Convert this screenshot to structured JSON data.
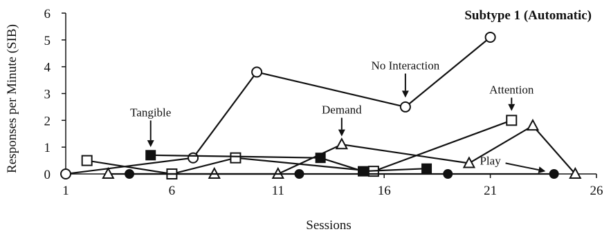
{
  "chart_data": {
    "type": "line",
    "title": "Subtype 1 (Automatic)",
    "xlabel": "Sessions",
    "ylabel": "Responses per Minute (SIB)",
    "xlim": [
      1,
      26
    ],
    "ylim": [
      0,
      6
    ],
    "x_ticks": [
      1,
      6,
      11,
      16,
      21,
      26
    ],
    "y_ticks": [
      0,
      1,
      2,
      3,
      4,
      5,
      6
    ],
    "grid": false,
    "legend": "none",
    "series": [
      {
        "name": "No Interaction",
        "marker": "open-circle",
        "points": [
          [
            1,
            0
          ],
          [
            7,
            0.6
          ],
          [
            10,
            3.8
          ],
          [
            17,
            2.5
          ],
          [
            21,
            5.1
          ]
        ]
      },
      {
        "name": "Attention",
        "marker": "open-square",
        "points": [
          [
            2,
            0.5
          ],
          [
            6,
            0
          ],
          [
            9,
            0.6
          ],
          [
            15.5,
            0.1
          ],
          [
            22,
            2.0
          ]
        ]
      },
      {
        "name": "Tangible",
        "marker": "filled-square",
        "points": [
          [
            5,
            0.7
          ],
          [
            13,
            0.6
          ],
          [
            15,
            0.1
          ],
          [
            18,
            0.2
          ]
        ]
      },
      {
        "name": "Demand",
        "marker": "open-triangle",
        "points": [
          [
            3,
            0
          ],
          [
            8,
            0
          ],
          [
            11,
            0
          ],
          [
            14,
            1.1
          ],
          [
            20,
            0.4
          ],
          [
            23,
            1.8
          ],
          [
            25,
            0
          ]
        ]
      },
      {
        "name": "Play",
        "marker": "filled-circle",
        "points": [
          [
            4,
            0
          ],
          [
            12,
            0
          ],
          [
            19,
            0
          ],
          [
            24,
            0
          ]
        ]
      }
    ],
    "annotations": [
      {
        "text": "Tangible",
        "x": 5,
        "y": 2.15,
        "arrow_to": [
          5,
          1.0
        ],
        "anchor": "middle"
      },
      {
        "text": "Demand",
        "x": 14,
        "y": 2.25,
        "arrow_to": [
          14,
          1.4
        ],
        "anchor": "middle"
      },
      {
        "text": "No Interaction",
        "x": 17,
        "y": 3.9,
        "arrow_to": [
          17,
          2.85
        ],
        "anchor": "middle"
      },
      {
        "text": "Attention",
        "x": 22,
        "y": 3.0,
        "arrow_to": [
          22,
          2.35
        ],
        "anchor": "middle"
      },
      {
        "text": "Play",
        "x": 21,
        "y": 0.35,
        "arrow_to": [
          23.6,
          0.1
        ],
        "anchor": "middle"
      }
    ]
  }
}
